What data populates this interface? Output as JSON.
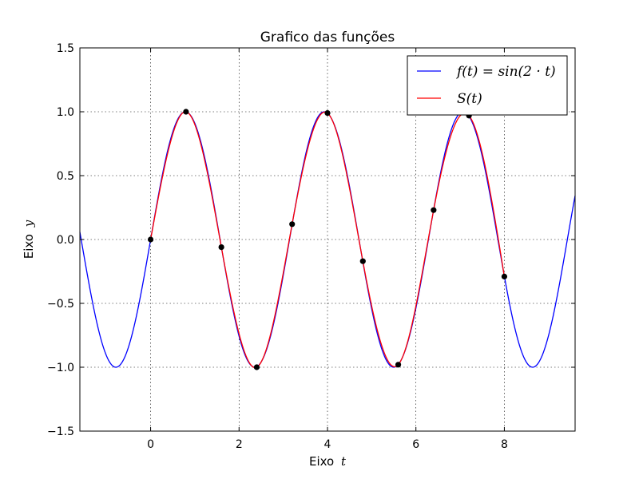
{
  "chart_data": {
    "type": "line",
    "title": "Grafico das funções",
    "xlabel_text": "Eixo",
    "xlabel_var": "t",
    "ylabel_text": "Eixo",
    "ylabel_var": "y",
    "xlim": [
      -1.6,
      9.6
    ],
    "ylim": [
      -1.5,
      1.5
    ],
    "x_ticks": [
      0,
      2,
      4,
      6,
      8
    ],
    "x_tick_labels": [
      "0",
      "2",
      "4",
      "6",
      "8"
    ],
    "y_ticks": [
      -1.5,
      -1.0,
      -0.5,
      0.0,
      0.5,
      1.0,
      1.5
    ],
    "y_tick_labels": [
      "−1.5",
      "−1.0",
      "−0.5",
      "0.0",
      "0.5",
      "1.0",
      "1.5"
    ],
    "grid": true,
    "legend_position": "top-right",
    "series": [
      {
        "name": "f(t) = sin(2 · t)",
        "color": "#0000ff",
        "function": "sin(2*t)",
        "domain": [
          -1.6,
          9.6
        ]
      },
      {
        "name": "S(t)",
        "color": "#ff0000",
        "interpolates": "points"
      }
    ],
    "points": {
      "color": "#000000",
      "x": [
        0,
        0.8,
        1.6,
        2.4,
        3.2,
        4.0,
        4.8,
        5.6,
        6.4,
        7.2,
        8.0
      ],
      "y": [
        0.0,
        1.0,
        -0.06,
        -1.0,
        0.12,
        0.99,
        -0.17,
        -0.98,
        0.23,
        0.97,
        -0.29
      ]
    }
  }
}
